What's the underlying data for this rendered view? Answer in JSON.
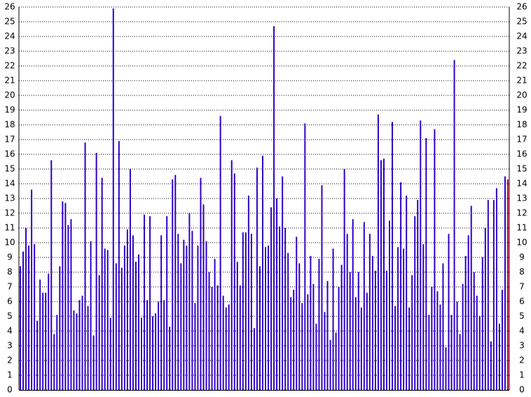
{
  "chart_data": {
    "type": "bar",
    "values": [
      8.4,
      9.4,
      11,
      9.8,
      13.6,
      9.9,
      4.7,
      7.5,
      6.6,
      6.6,
      7.9,
      15.6,
      3.8,
      5.1,
      8.4,
      12.8,
      12.7,
      11.2,
      11.6,
      5.4,
      5.2,
      6.1,
      6.4,
      16.8,
      5.7,
      10.1,
      3.7,
      16.1,
      7.8,
      14.4,
      9.6,
      9.5,
      4.9,
      25.9,
      8.6,
      16.9,
      8.3,
      9.8,
      10.9,
      15,
      10.5,
      8.7,
      9.2,
      4.9,
      11.9,
      6.1,
      11.8,
      5,
      5.2,
      6,
      10.5,
      6.1,
      11.8,
      4.3,
      14.3,
      14.6,
      10.6,
      8.6,
      10.2,
      9.8,
      12,
      10.8,
      5.9,
      9.8,
      14.4,
      12.6,
      10.1,
      8,
      7,
      8.9,
      7.1,
      18.6,
      6.4,
      5.6,
      5.8,
      15.6,
      14.7,
      8.7,
      7.1,
      10.7,
      10.7,
      13.2,
      10.6,
      4.2,
      15.1,
      8.4,
      15.9,
      9.7,
      9.8,
      12.4,
      24.7,
      13,
      11.1,
      14.5,
      11,
      9.3,
      6.3,
      6.8,
      10.4,
      8.6,
      5.9,
      18.1,
      6.5,
      9.1,
      7.2,
      4.5,
      8.9,
      13.9,
      5.3,
      7.4,
      3.4,
      9.6,
      3.9,
      7,
      8.5,
      15,
      10.6,
      8,
      11.6,
      6.3,
      8,
      5.6,
      11.4,
      6.6,
      10.6,
      9.1,
      8.1,
      18.7,
      15.6,
      15.7,
      8.1,
      11.5,
      18.2,
      5.7,
      9.7,
      14.1,
      9.6,
      13.2,
      5.6,
      7.8,
      11.8,
      12.9,
      18.3,
      9.9,
      17.1,
      5.1,
      7,
      17.7,
      6.7,
      5.8,
      8.6,
      2.9,
      10.6,
      5.1,
      22.4,
      6,
      3.8,
      7.2,
      9.1,
      10.5,
      12.5,
      8,
      6.4,
      5,
      9,
      11,
      12.9,
      3.3,
      12.9,
      13.7,
      4.5,
      6.8,
      14.5,
      14.3
    ],
    "color": "#2f00c8",
    "last_bar_color": "#c8003c",
    "ylim": [
      0,
      26
    ],
    "yticks": [
      0,
      1,
      2,
      3,
      4,
      5,
      6,
      7,
      8,
      9,
      10,
      11,
      12,
      13,
      14,
      15,
      16,
      17,
      18,
      19,
      20,
      21,
      22,
      23,
      24,
      25,
      26
    ],
    "grid": true
  }
}
